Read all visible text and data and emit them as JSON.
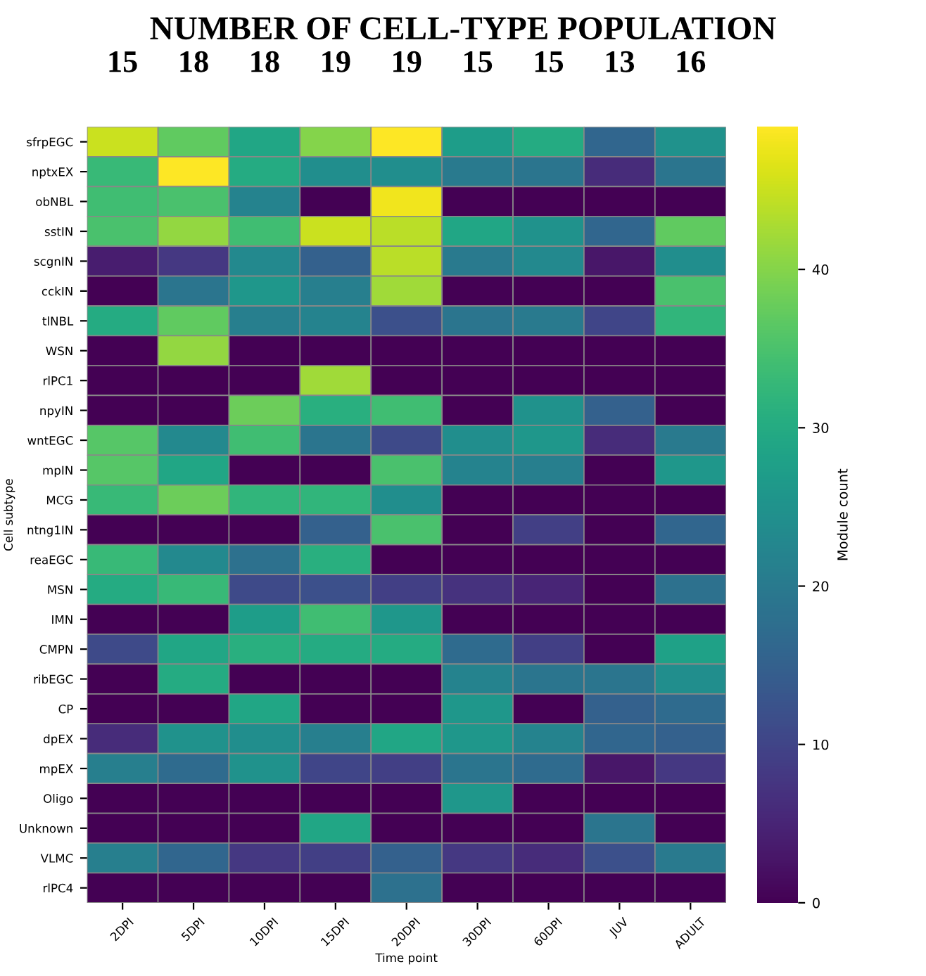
{
  "chart_data": {
    "type": "heatmap",
    "title": "NUMBER OF CELL-TYPE POPULATION",
    "xlabel": "Time point",
    "ylabel": "Cell subtype",
    "clabel": "Module count",
    "categories": [
      "2DPI",
      "5DPI",
      "10DPI",
      "15DPI",
      "20DPI",
      "30DPI",
      "60DPI",
      "JUV",
      "ADULT"
    ],
    "y_categories": [
      "sfrpEGC",
      "nptxEX",
      "obNBL",
      "sstIN",
      "scgnIN",
      "cckIN",
      "tlNBL",
      "WSN",
      "rlPC1",
      "npyIN",
      "wntEGC",
      "mpIN",
      "MCG",
      "ntng1IN",
      "reaEGC",
      "MSN",
      "IMN",
      "CMPN",
      "ribEGC",
      "CP",
      "dpEX",
      "mpEX",
      "Oligo",
      "Unknown",
      "VLMC",
      "rlPC4"
    ],
    "cells": [
      [
        45,
        37,
        29,
        40,
        49,
        27,
        30,
        16,
        25
      ],
      [
        33,
        49,
        30,
        24,
        24,
        20,
        19,
        6,
        19
      ],
      [
        34,
        35,
        22,
        0,
        48,
        0,
        0,
        0,
        0
      ],
      [
        35,
        41,
        34,
        45,
        44,
        29,
        25,
        16,
        37
      ],
      [
        4,
        8,
        23,
        15,
        44,
        20,
        23,
        3,
        24
      ],
      [
        0,
        19,
        26,
        21,
        42,
        0,
        0,
        0,
        35
      ],
      [
        30,
        37,
        21,
        22,
        12,
        19,
        20,
        10,
        32
      ],
      [
        0,
        41,
        0,
        0,
        0,
        0,
        0,
        0,
        0
      ],
      [
        0,
        0,
        0,
        42,
        0,
        0,
        0,
        0,
        0
      ],
      [
        0,
        0,
        38,
        31,
        34,
        0,
        25,
        15,
        0
      ],
      [
        36,
        23,
        34,
        19,
        11,
        24,
        26,
        6,
        20
      ],
      [
        36,
        29,
        0,
        0,
        35,
        22,
        21,
        0,
        26
      ],
      [
        33,
        38,
        32,
        32,
        24,
        0,
        0,
        0,
        0
      ],
      [
        0,
        0,
        0,
        15,
        35,
        0,
        9,
        0,
        16
      ],
      [
        33,
        23,
        18,
        31,
        0,
        0,
        0,
        0,
        0
      ],
      [
        30,
        33,
        11,
        12,
        9,
        7,
        5,
        0,
        18
      ],
      [
        0,
        0,
        27,
        34,
        26,
        0,
        0,
        0,
        0
      ],
      [
        11,
        29,
        31,
        30,
        30,
        17,
        9,
        0,
        28
      ],
      [
        0,
        30,
        0,
        0,
        0,
        22,
        19,
        19,
        24
      ],
      [
        0,
        0,
        29,
        0,
        0,
        26,
        0,
        15,
        17
      ],
      [
        6,
        25,
        24,
        21,
        29,
        26,
        22,
        16,
        15
      ],
      [
        21,
        17,
        25,
        10,
        9,
        19,
        17,
        3,
        8
      ],
      [
        0,
        0,
        0,
        0,
        0,
        26,
        0,
        0,
        0
      ],
      [
        0,
        0,
        0,
        29,
        0,
        0,
        0,
        19,
        0
      ],
      [
        21,
        16,
        8,
        9,
        15,
        8,
        6,
        12,
        20
      ],
      [
        0,
        0,
        0,
        0,
        18,
        0,
        0,
        0,
        0
      ]
    ],
    "clim": [
      0,
      49
    ],
    "cticks": [
      0,
      10,
      20,
      30,
      40
    ],
    "annotations": [
      "15",
      "18",
      "18",
      "19",
      "19",
      "15",
      "15",
      "13",
      "16"
    ]
  }
}
